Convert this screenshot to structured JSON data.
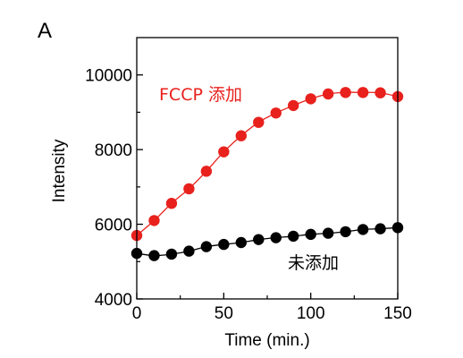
{
  "panel_label": "A",
  "chart_data": {
    "type": "line",
    "title": "",
    "xlabel": "Time (min.)",
    "ylabel": "Intensity",
    "xlim": [
      0,
      150
    ],
    "ylim": [
      4000,
      11000
    ],
    "xticks": [
      0,
      50,
      100,
      150
    ],
    "yticks": [
      4000,
      6000,
      8000,
      10000
    ],
    "grid": false,
    "series": [
      {
        "name": "FCCP 添加",
        "color": "#e8211d",
        "x": [
          0,
          10,
          20,
          30,
          40,
          50,
          60,
          70,
          80,
          90,
          100,
          110,
          120,
          130,
          140,
          150
        ],
        "y": [
          5700,
          6100,
          6560,
          6950,
          7420,
          7940,
          8370,
          8730,
          8980,
          9180,
          9360,
          9490,
          9530,
          9530,
          9520,
          9420
        ]
      },
      {
        "name": "未添加",
        "color": "#000000",
        "x": [
          0,
          10,
          20,
          30,
          40,
          50,
          60,
          70,
          80,
          90,
          100,
          110,
          120,
          130,
          140,
          150
        ],
        "y": [
          5220,
          5160,
          5200,
          5280,
          5400,
          5460,
          5510,
          5590,
          5640,
          5680,
          5730,
          5760,
          5800,
          5860,
          5880,
          5910
        ]
      }
    ]
  }
}
